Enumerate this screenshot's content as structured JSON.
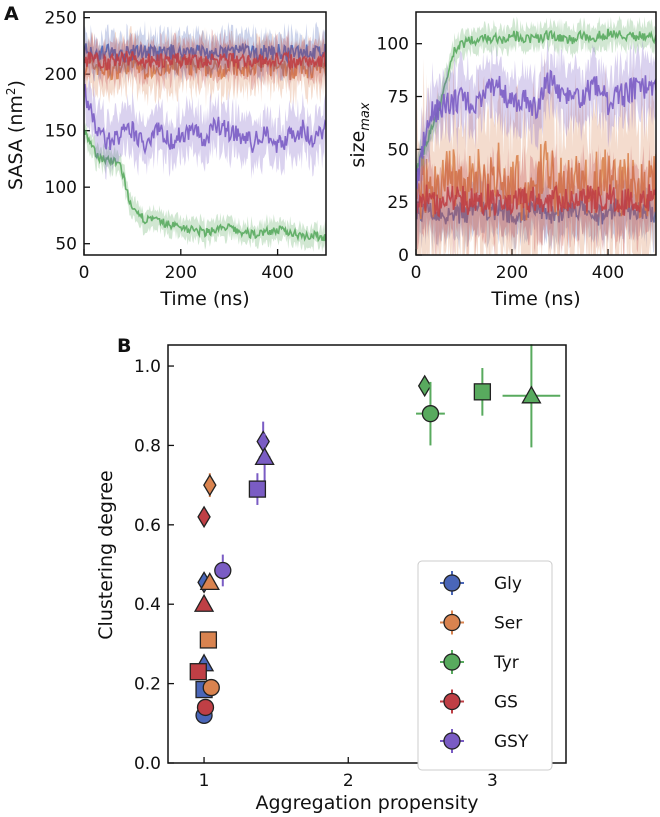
{
  "panel_labels": {
    "a": "A",
    "b": "B"
  },
  "colors": {
    "Gly": "#4a66b8",
    "Ser": "#d9834f",
    "Tyr": "#58aa5e",
    "GS": "#bf3f45",
    "GSY": "#7a5cc4"
  },
  "chart_data": [
    {
      "id": "sasa",
      "type": "line",
      "xlabel": "Time (ns)",
      "ylabel": "SASA (nm²)",
      "ylabel_main": "SASA (nm",
      "ylabel_sup": "2",
      "ylabel_end": ")",
      "xlim": [
        0,
        500
      ],
      "ylim": [
        40,
        255
      ],
      "xticks": [
        0,
        200,
        400
      ],
      "yticks": [
        50,
        100,
        150,
        200,
        250
      ],
      "x": [
        0,
        25,
        50,
        75,
        100,
        125,
        150,
        175,
        200,
        225,
        250,
        275,
        300,
        325,
        350,
        375,
        400,
        425,
        450,
        475,
        500
      ],
      "series": [
        {
          "name": "Ser",
          "values": [
            205,
            208,
            202,
            206,
            210,
            204,
            207,
            203,
            209,
            205,
            206,
            204,
            208,
            202,
            207,
            205,
            209,
            203,
            206,
            204,
            207
          ]
        },
        {
          "name": "Gly",
          "values": [
            222,
            218,
            220,
            216,
            219,
            221,
            217,
            220,
            218,
            222,
            219,
            217,
            220,
            221,
            218,
            219,
            220,
            218,
            221,
            219,
            220
          ]
        },
        {
          "name": "Tyr",
          "values": [
            150,
            128,
            124,
            120,
            78,
            72,
            70,
            67,
            65,
            62,
            60,
            63,
            64,
            60,
            58,
            61,
            62,
            60,
            58,
            57,
            56
          ]
        },
        {
          "name": "GSY",
          "values": [
            185,
            152,
            140,
            146,
            150,
            136,
            155,
            140,
            146,
            152,
            140,
            156,
            150,
            145,
            138,
            150,
            136,
            146,
            152,
            140,
            156
          ]
        },
        {
          "name": "GS",
          "values": [
            212,
            214,
            210,
            213,
            215,
            211,
            214,
            209,
            213,
            212,
            210,
            214,
            212,
            211,
            213,
            210,
            214,
            212,
            211,
            213,
            212
          ]
        }
      ]
    },
    {
      "id": "sizemax",
      "type": "line",
      "xlabel": "Time (ns)",
      "ylabel_main": "size",
      "ylabel_sub": "max",
      "xlim": [
        0,
        500
      ],
      "ylim": [
        0,
        115
      ],
      "xticks": [
        0,
        200,
        400
      ],
      "yticks": [
        0,
        25,
        50,
        75,
        100
      ],
      "x": [
        0,
        25,
        50,
        75,
        100,
        125,
        150,
        175,
        200,
        225,
        250,
        275,
        300,
        325,
        350,
        375,
        400,
        425,
        450,
        475,
        500
      ],
      "series": [
        {
          "name": "Gly",
          "values": [
            20,
            22,
            18,
            21,
            19,
            23,
            20,
            22,
            18,
            21,
            24,
            19,
            20,
            22,
            21,
            18,
            20,
            23,
            19,
            21,
            20
          ]
        },
        {
          "name": "Ser",
          "values": [
            30,
            35,
            28,
            40,
            32,
            38,
            30,
            42,
            34,
            30,
            36,
            40,
            32,
            38,
            30,
            34,
            40,
            32,
            36,
            30,
            34
          ]
        },
        {
          "name": "Tyr",
          "values": [
            40,
            55,
            70,
            95,
            100,
            102,
            103,
            102,
            104,
            103,
            102,
            104,
            103,
            102,
            104,
            103,
            105,
            104,
            103,
            104,
            103
          ]
        },
        {
          "name": "GS",
          "values": [
            25,
            27,
            24,
            28,
            26,
            25,
            27,
            24,
            26,
            28,
            25,
            27,
            26,
            24,
            28,
            25,
            27,
            26,
            25,
            27,
            26
          ]
        },
        {
          "name": "GSY",
          "values": [
            30,
            65,
            70,
            72,
            75,
            70,
            78,
            80,
            72,
            75,
            70,
            82,
            78,
            74,
            76,
            80,
            72,
            75,
            78,
            80,
            76
          ]
        }
      ]
    },
    {
      "id": "clustering",
      "type": "scatter",
      "xlabel": "Aggregation propensity",
      "ylabel": "Clustering degree",
      "xlim": [
        0.75,
        3.51
      ],
      "ylim": [
        0.0,
        1.053
      ],
      "xticks": [
        1,
        2,
        3
      ],
      "yticks": [
        "0.0",
        "0.2",
        "0.4",
        "0.6",
        "0.8",
        "1.0"
      ],
      "legend": {
        "placement": "bottom-right",
        "entries": [
          "Gly",
          "Ser",
          "Tyr",
          "GS",
          "GSY"
        ]
      },
      "points": [
        {
          "series": "Gly",
          "marker": "diamond",
          "x": 1.0,
          "y": 0.455,
          "xerr": 0,
          "yerr": 0.01
        },
        {
          "series": "Ser",
          "marker": "diamond",
          "x": 1.04,
          "y": 0.7,
          "xerr": 0,
          "yerr": 0.03
        },
        {
          "series": "GS",
          "marker": "diamond",
          "x": 1.0,
          "y": 0.62,
          "xerr": 0,
          "yerr": 0.01
        },
        {
          "series": "GSY",
          "marker": "diamond",
          "x": 1.41,
          "y": 0.81,
          "xerr": 0,
          "yerr": 0.05
        },
        {
          "series": "Tyr",
          "marker": "diamond",
          "x": 2.53,
          "y": 0.95,
          "xerr": 0,
          "yerr": 0.02
        },
        {
          "series": "Gly",
          "marker": "triangle",
          "x": 1.0,
          "y": 0.25,
          "xerr": 0,
          "yerr": 0.01
        },
        {
          "series": "Ser",
          "marker": "triangle",
          "x": 1.04,
          "y": 0.455,
          "xerr": 0,
          "yerr": 0.01
        },
        {
          "series": "GS",
          "marker": "triangle",
          "x": 1.0,
          "y": 0.4,
          "xerr": 0,
          "yerr": 0.01
        },
        {
          "series": "GSY",
          "marker": "triangle",
          "x": 1.42,
          "y": 0.77,
          "xerr": 0.04,
          "yerr": 0.06
        },
        {
          "series": "Tyr",
          "marker": "triangle",
          "x": 3.27,
          "y": 0.925,
          "xerr": 0.2,
          "yerr": 0.13
        },
        {
          "series": "Gly",
          "marker": "square",
          "x": 1.0,
          "y": 0.185,
          "xerr": 0,
          "yerr": 0.01
        },
        {
          "series": "Ser",
          "marker": "square",
          "x": 1.03,
          "y": 0.31,
          "xerr": 0,
          "yerr": 0.01
        },
        {
          "series": "GS",
          "marker": "square",
          "x": 0.96,
          "y": 0.23,
          "xerr": 0,
          "yerr": 0.01
        },
        {
          "series": "GSY",
          "marker": "square",
          "x": 1.37,
          "y": 0.69,
          "xerr": 0,
          "yerr": 0.04
        },
        {
          "series": "Tyr",
          "marker": "square",
          "x": 2.93,
          "y": 0.935,
          "xerr": 0,
          "yerr": 0.06
        },
        {
          "series": "Gly",
          "marker": "circle",
          "x": 1.0,
          "y": 0.12,
          "xerr": 0,
          "yerr": 0.01
        },
        {
          "series": "GS",
          "marker": "circle",
          "x": 1.01,
          "y": 0.14,
          "xerr": 0,
          "yerr": 0.01
        },
        {
          "series": "Ser",
          "marker": "circle",
          "x": 1.05,
          "y": 0.19,
          "xerr": 0,
          "yerr": 0.01
        },
        {
          "series": "GSY",
          "marker": "circle",
          "x": 1.13,
          "y": 0.485,
          "xerr": 0,
          "yerr": 0.04
        },
        {
          "series": "Tyr",
          "marker": "circle",
          "x": 2.57,
          "y": 0.88,
          "xerr": 0.1,
          "yerr": 0.08
        }
      ]
    }
  ]
}
